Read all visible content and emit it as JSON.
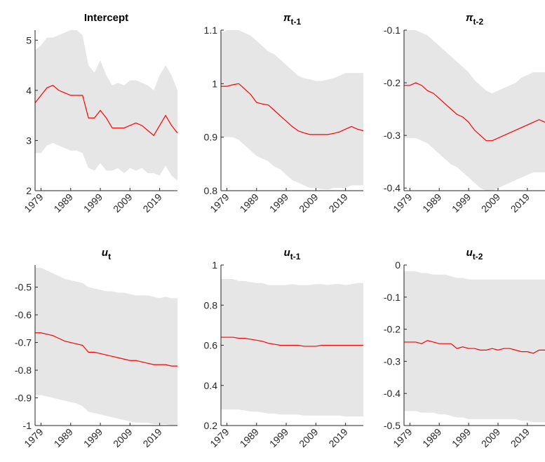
{
  "chart_data": [
    {
      "type": "band-line",
      "title": "Intercept",
      "color": "#ff0000",
      "band_color": "#e6e6e6",
      "x": [
        1977,
        1979,
        1981,
        1983,
        1985,
        1987,
        1989,
        1991,
        1993,
        1995,
        1997,
        1999,
        2001,
        2003,
        2005,
        2007,
        2009,
        2011,
        2013,
        2015,
        2017,
        2019,
        2021,
        2023,
        2025
      ],
      "values": [
        3.75,
        3.9,
        4.05,
        4.1,
        4.0,
        3.95,
        3.9,
        3.9,
        3.9,
        3.45,
        3.45,
        3.6,
        3.45,
        3.25,
        3.25,
        3.25,
        3.3,
        3.35,
        3.3,
        3.2,
        3.1,
        3.3,
        3.5,
        3.3,
        3.15
      ],
      "band_upper": [
        4.8,
        4.9,
        5.05,
        5.05,
        5.1,
        5.15,
        5.2,
        5.2,
        5.1,
        4.5,
        4.35,
        4.6,
        4.3,
        4.1,
        4.15,
        4.1,
        4.2,
        4.2,
        4.15,
        4.1,
        4.0,
        4.3,
        4.5,
        4.3,
        4.0
      ],
      "band_lower": [
        2.75,
        2.75,
        2.9,
        2.95,
        2.9,
        2.85,
        2.8,
        2.8,
        2.75,
        2.45,
        2.4,
        2.55,
        2.4,
        2.4,
        2.45,
        2.35,
        2.45,
        2.4,
        2.45,
        2.35,
        2.35,
        2.3,
        2.5,
        2.3,
        2.2
      ],
      "xlim": [
        1977,
        2025
      ],
      "xticks": [
        1979,
        1989,
        1999,
        2009,
        2019
      ],
      "ylim": [
        2,
        5.2
      ],
      "yticks": [
        2,
        3,
        4,
        5
      ]
    },
    {
      "type": "band-line",
      "title": "π",
      "title_subscript": "t-1",
      "color": "#ff0000",
      "band_color": "#e6e6e6",
      "x": [
        1977,
        1979,
        1981,
        1983,
        1985,
        1987,
        1989,
        1991,
        1993,
        1995,
        1997,
        1999,
        2001,
        2003,
        2005,
        2007,
        2009,
        2011,
        2013,
        2015,
        2017,
        2019,
        2021,
        2023,
        2025
      ],
      "values": [
        0.995,
        0.995,
        0.998,
        1.0,
        0.99,
        0.98,
        0.965,
        0.962,
        0.96,
        0.95,
        0.94,
        0.93,
        0.92,
        0.912,
        0.908,
        0.905,
        0.905,
        0.905,
        0.905,
        0.907,
        0.91,
        0.915,
        0.92,
        0.915,
        0.912
      ],
      "band_upper": [
        1.095,
        1.1,
        1.1,
        1.1,
        1.095,
        1.09,
        1.08,
        1.07,
        1.06,
        1.055,
        1.045,
        1.035,
        1.025,
        1.015,
        1.01,
        1.008,
        1.005,
        1.005,
        1.008,
        1.01,
        1.015,
        1.02,
        1.02,
        1.02,
        1.02
      ],
      "band_lower": [
        0.9,
        0.9,
        0.9,
        0.895,
        0.885,
        0.875,
        0.865,
        0.86,
        0.855,
        0.845,
        0.84,
        0.83,
        0.82,
        0.815,
        0.81,
        0.805,
        0.805,
        0.803,
        0.802,
        0.805,
        0.805,
        0.805,
        0.81,
        0.81,
        0.81
      ],
      "xlim": [
        1977,
        2025
      ],
      "xticks": [
        1979,
        1989,
        1999,
        2009,
        2019
      ],
      "ylim": [
        0.8,
        1.1
      ],
      "yticks": [
        0.8,
        0.9,
        1,
        1.1
      ]
    },
    {
      "type": "band-line",
      "title": "π",
      "title_subscript": "t-2",
      "color": "#ff0000",
      "band_color": "#e6e6e6",
      "x": [
        1977,
        1979,
        1981,
        1983,
        1985,
        1987,
        1989,
        1991,
        1993,
        1995,
        1997,
        1999,
        2001,
        2003,
        2005,
        2007,
        2009,
        2011,
        2013,
        2015,
        2017,
        2019,
        2021,
        2023,
        2025
      ],
      "values": [
        -0.205,
        -0.205,
        -0.2,
        -0.205,
        -0.215,
        -0.22,
        -0.23,
        -0.24,
        -0.25,
        -0.26,
        -0.265,
        -0.275,
        -0.29,
        -0.3,
        -0.31,
        -0.31,
        -0.305,
        -0.3,
        -0.295,
        -0.29,
        -0.285,
        -0.28,
        -0.275,
        -0.27,
        -0.275
      ],
      "band_upper": [
        -0.1,
        -0.1,
        -0.1,
        -0.105,
        -0.11,
        -0.12,
        -0.13,
        -0.14,
        -0.15,
        -0.16,
        -0.17,
        -0.18,
        -0.195,
        -0.205,
        -0.215,
        -0.22,
        -0.215,
        -0.21,
        -0.205,
        -0.2,
        -0.19,
        -0.185,
        -0.18,
        -0.18,
        -0.18
      ],
      "band_lower": [
        -0.305,
        -0.305,
        -0.305,
        -0.31,
        -0.315,
        -0.325,
        -0.335,
        -0.345,
        -0.355,
        -0.36,
        -0.37,
        -0.38,
        -0.39,
        -0.4,
        -0.405,
        -0.405,
        -0.4,
        -0.395,
        -0.39,
        -0.385,
        -0.38,
        -0.375,
        -0.37,
        -0.37,
        -0.37
      ],
      "xlim": [
        1977,
        2025
      ],
      "xticks": [
        1979,
        1989,
        1999,
        2009,
        2019
      ],
      "ylim": [
        -0.405,
        -0.1
      ],
      "yticks": [
        -0.4,
        -0.3,
        -0.2,
        -0.1
      ]
    },
    {
      "type": "band-line",
      "title": "u",
      "title_subscript": "t",
      "color": "#ff0000",
      "band_color": "#e6e6e6",
      "x": [
        1977,
        1979,
        1981,
        1983,
        1985,
        1987,
        1989,
        1991,
        1993,
        1995,
        1997,
        1999,
        2001,
        2003,
        2005,
        2007,
        2009,
        2011,
        2013,
        2015,
        2017,
        2019,
        2021,
        2023,
        2025
      ],
      "values": [
        -0.665,
        -0.665,
        -0.67,
        -0.675,
        -0.685,
        -0.695,
        -0.7,
        -0.705,
        -0.71,
        -0.735,
        -0.735,
        -0.74,
        -0.745,
        -0.75,
        -0.755,
        -0.76,
        -0.765,
        -0.765,
        -0.77,
        -0.775,
        -0.78,
        -0.78,
        -0.78,
        -0.785,
        -0.785
      ],
      "band_upper": [
        -0.43,
        -0.43,
        -0.44,
        -0.45,
        -0.46,
        -0.47,
        -0.475,
        -0.48,
        -0.485,
        -0.5,
        -0.505,
        -0.51,
        -0.515,
        -0.515,
        -0.52,
        -0.52,
        -0.525,
        -0.53,
        -0.53,
        -0.53,
        -0.535,
        -0.54,
        -0.535,
        -0.54,
        -0.54
      ],
      "band_lower": [
        -0.89,
        -0.89,
        -0.895,
        -0.9,
        -0.905,
        -0.91,
        -0.915,
        -0.92,
        -0.93,
        -0.95,
        -0.955,
        -0.96,
        -0.965,
        -0.97,
        -0.975,
        -0.98,
        -0.985,
        -0.99,
        -0.99,
        -0.99,
        -0.995,
        -0.995,
        -0.995,
        -1.0,
        -1.0
      ],
      "xlim": [
        1977,
        2025
      ],
      "xticks": [
        1979,
        1989,
        1999,
        2009,
        2019
      ],
      "ylim": [
        -1,
        -0.42
      ],
      "yticks": [
        -1,
        -0.9,
        -0.8,
        -0.7,
        -0.6,
        -0.5
      ]
    },
    {
      "type": "band-line",
      "title": "u",
      "title_subscript": "t-1",
      "color": "#ff0000",
      "band_color": "#e6e6e6",
      "x": [
        1977,
        1979,
        1981,
        1983,
        1985,
        1987,
        1989,
        1991,
        1993,
        1995,
        1997,
        1999,
        2001,
        2003,
        2005,
        2007,
        2009,
        2011,
        2013,
        2015,
        2017,
        2019,
        2021,
        2023,
        2025
      ],
      "values": [
        0.64,
        0.64,
        0.64,
        0.635,
        0.635,
        0.63,
        0.625,
        0.62,
        0.61,
        0.605,
        0.6,
        0.6,
        0.6,
        0.6,
        0.595,
        0.595,
        0.595,
        0.6,
        0.6,
        0.6,
        0.6,
        0.6,
        0.6,
        0.6,
        0.6
      ],
      "band_upper": [
        0.93,
        0.93,
        0.93,
        0.92,
        0.92,
        0.915,
        0.91,
        0.91,
        0.9,
        0.9,
        0.9,
        0.9,
        0.905,
        0.9,
        0.9,
        0.9,
        0.905,
        0.905,
        0.9,
        0.905,
        0.905,
        0.9,
        0.905,
        0.91,
        0.91
      ],
      "band_lower": [
        0.28,
        0.28,
        0.28,
        0.28,
        0.275,
        0.27,
        0.27,
        0.265,
        0.26,
        0.26,
        0.255,
        0.255,
        0.255,
        0.255,
        0.25,
        0.25,
        0.25,
        0.25,
        0.25,
        0.25,
        0.25,
        0.245,
        0.245,
        0.245,
        0.245
      ],
      "xlim": [
        1977,
        2025
      ],
      "xticks": [
        1979,
        1989,
        1999,
        2009,
        2019
      ],
      "ylim": [
        0.2,
        1
      ],
      "yticks": [
        0.2,
        0.4,
        0.6,
        0.8,
        1
      ]
    },
    {
      "type": "band-line",
      "title": "u",
      "title_subscript": "t-2",
      "color": "#ff0000",
      "band_color": "#e6e6e6",
      "x": [
        1977,
        1979,
        1981,
        1983,
        1985,
        1987,
        1989,
        1991,
        1993,
        1995,
        1997,
        1999,
        2001,
        2003,
        2005,
        2007,
        2009,
        2011,
        2013,
        2015,
        2017,
        2019,
        2021,
        2023,
        2025
      ],
      "values": [
        -0.24,
        -0.24,
        -0.24,
        -0.245,
        -0.235,
        -0.24,
        -0.245,
        -0.245,
        -0.245,
        -0.26,
        -0.255,
        -0.26,
        -0.26,
        -0.265,
        -0.265,
        -0.26,
        -0.265,
        -0.26,
        -0.26,
        -0.265,
        -0.27,
        -0.27,
        -0.275,
        -0.265,
        -0.265
      ],
      "band_upper": [
        -0.02,
        -0.02,
        -0.02,
        -0.025,
        -0.025,
        -0.03,
        -0.03,
        -0.03,
        -0.035,
        -0.04,
        -0.04,
        -0.045,
        -0.045,
        -0.045,
        -0.045,
        -0.045,
        -0.045,
        -0.045,
        -0.045,
        -0.045,
        -0.045,
        -0.045,
        -0.045,
        -0.045,
        -0.045
      ],
      "band_lower": [
        -0.455,
        -0.455,
        -0.455,
        -0.46,
        -0.46,
        -0.46,
        -0.465,
        -0.465,
        -0.47,
        -0.475,
        -0.475,
        -0.48,
        -0.48,
        -0.48,
        -0.48,
        -0.48,
        -0.48,
        -0.48,
        -0.48,
        -0.48,
        -0.485,
        -0.485,
        -0.49,
        -0.49,
        -0.49
      ],
      "xlim": [
        1977,
        2025
      ],
      "xticks": [
        1979,
        1989,
        1999,
        2009,
        2019
      ],
      "ylim": [
        -0.5,
        0
      ],
      "yticks": [
        -0.5,
        -0.4,
        -0.3,
        -0.2,
        -0.1,
        0
      ]
    }
  ]
}
